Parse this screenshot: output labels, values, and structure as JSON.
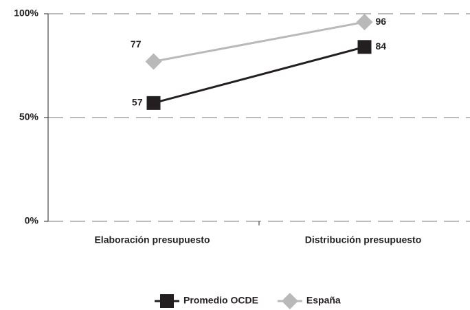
{
  "chart_data": {
    "type": "line",
    "categories": [
      "Elaboración presupuesto",
      "Distribución presupuesto"
    ],
    "series": [
      {
        "name": "Promedio OCDE",
        "color": "#231f20",
        "marker": "square",
        "values": [
          57,
          84
        ]
      },
      {
        "name": "España",
        "color": "#b9b9b9",
        "marker": "diamond",
        "values": [
          77,
          96
        ]
      }
    ],
    "ylim": [
      0,
      100
    ],
    "yticks": [
      {
        "value": 0,
        "label": "0%"
      },
      {
        "value": 50,
        "label": "50%"
      },
      {
        "value": 100,
        "label": "100%"
      }
    ],
    "grid": true,
    "legend": "bottom"
  }
}
